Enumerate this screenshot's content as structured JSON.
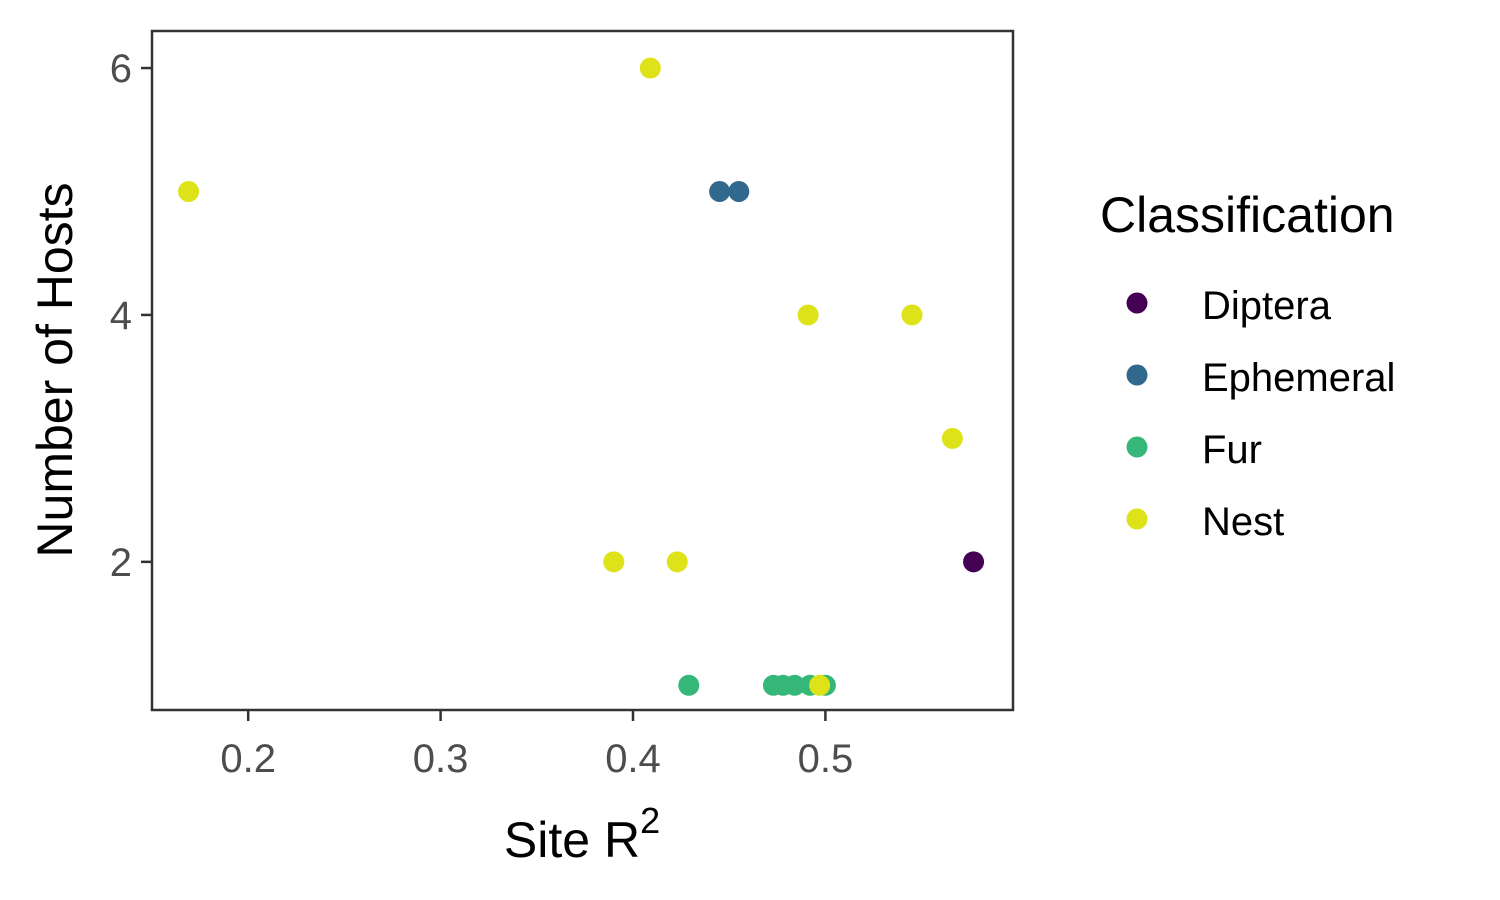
{
  "chart_data": {
    "type": "scatter",
    "title": "",
    "xlabel": "Site R",
    "xlabel_superscript": "2",
    "ylabel": "Number of Hosts",
    "xlim": [
      0.15,
      0.5975
    ],
    "ylim": [
      0.8,
      6.3
    ],
    "x_ticks": [
      0.2,
      0.3,
      0.4,
      0.5
    ],
    "x_tick_labels": [
      "0.2",
      "0.3",
      "0.4",
      "0.5"
    ],
    "y_ticks": [
      2,
      4,
      6
    ],
    "y_tick_labels": [
      "2",
      "4",
      "6"
    ],
    "grid": false,
    "legend": {
      "title": "Classification",
      "position": "right",
      "entries": [
        {
          "name": "Diptera",
          "color": "#440154"
        },
        {
          "name": "Ephemeral",
          "color": "#31688e"
        },
        {
          "name": "Fur",
          "color": "#35b779"
        },
        {
          "name": "Nest",
          "color": "#dde318"
        }
      ]
    },
    "series": [
      {
        "name": "Diptera",
        "color": "#440154",
        "points": [
          [
            0.577,
            2
          ]
        ]
      },
      {
        "name": "Ephemeral",
        "color": "#31688e",
        "points": [
          [
            0.445,
            5
          ],
          [
            0.455,
            5
          ]
        ]
      },
      {
        "name": "Fur",
        "color": "#35b779",
        "points": [
          [
            0.429,
            1
          ],
          [
            0.473,
            1
          ],
          [
            0.478,
            1
          ],
          [
            0.484,
            1
          ],
          [
            0.492,
            1
          ],
          [
            0.5,
            1
          ]
        ]
      },
      {
        "name": "Nest",
        "color": "#dde318",
        "points": [
          [
            0.169,
            5
          ],
          [
            0.409,
            6
          ],
          [
            0.491,
            4
          ],
          [
            0.545,
            4
          ],
          [
            0.566,
            3
          ],
          [
            0.39,
            2
          ],
          [
            0.423,
            2
          ],
          [
            0.497,
            1
          ]
        ]
      }
    ]
  }
}
